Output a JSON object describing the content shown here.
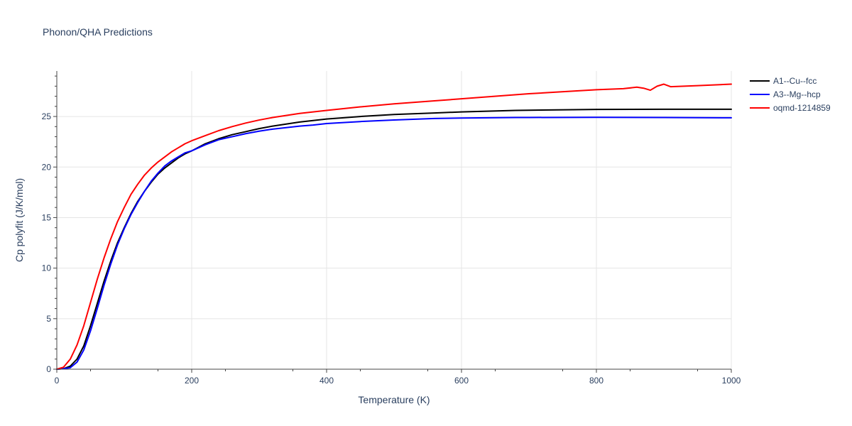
{
  "chart_data": {
    "type": "line",
    "title": "Phonon/QHA Predictions",
    "xlabel": "Temperature (K)",
    "ylabel": "Cp polyfit (J/K/mol)",
    "xlim": [
      0,
      1000
    ],
    "ylim": [
      0,
      29.5
    ],
    "xticks": [
      0,
      200,
      400,
      600,
      800,
      1000
    ],
    "xtick_labels": [
      "0",
      "200",
      "400",
      "600",
      "800",
      "1000"
    ],
    "yticks": [
      0,
      5,
      10,
      15,
      20,
      25
    ],
    "ytick_labels": [
      "0",
      "5",
      "10",
      "15",
      "20",
      "25"
    ],
    "grid": true,
    "legend_position": "top-right",
    "series": [
      {
        "name": "A1--Cu--fcc",
        "color": "#000000",
        "x": [
          0,
          10,
          20,
          30,
          40,
          50,
          60,
          70,
          80,
          90,
          100,
          110,
          120,
          130,
          140,
          150,
          160,
          170,
          180,
          190,
          200,
          220,
          240,
          260,
          280,
          300,
          320,
          340,
          360,
          380,
          400,
          450,
          500,
          560,
          600,
          680,
          700,
          800,
          900,
          1000
        ],
        "y": [
          0,
          0.05,
          0.3,
          1.0,
          2.3,
          4.3,
          6.5,
          8.7,
          10.7,
          12.5,
          14.0,
          15.4,
          16.6,
          17.6,
          18.5,
          19.3,
          19.9,
          20.4,
          20.9,
          21.3,
          21.6,
          22.3,
          22.8,
          23.2,
          23.5,
          23.8,
          24.05,
          24.25,
          24.45,
          24.6,
          24.75,
          25.0,
          25.2,
          25.35,
          25.45,
          25.6,
          25.62,
          25.7,
          25.72,
          25.72
        ]
      },
      {
        "name": "A3--Mg--hcp",
        "color": "#0000ff",
        "x": [
          0,
          10,
          20,
          30,
          40,
          50,
          60,
          70,
          80,
          90,
          100,
          110,
          120,
          130,
          140,
          150,
          160,
          170,
          180,
          190,
          200,
          220,
          240,
          260,
          280,
          300,
          320,
          340,
          360,
          380,
          400,
          450,
          500,
          560,
          600,
          680,
          700,
          800,
          900,
          1000
        ],
        "y": [
          0,
          0.05,
          0.15,
          0.7,
          1.9,
          3.8,
          6.0,
          8.3,
          10.4,
          12.3,
          13.9,
          15.3,
          16.5,
          17.6,
          18.6,
          19.4,
          20.1,
          20.6,
          21.0,
          21.4,
          21.6,
          22.2,
          22.7,
          23.0,
          23.3,
          23.55,
          23.75,
          23.9,
          24.05,
          24.15,
          24.3,
          24.5,
          24.65,
          24.8,
          24.85,
          24.9,
          24.9,
          24.92,
          24.9,
          24.87
        ]
      },
      {
        "name": "oqmd-1214859",
        "color": "#ff0000",
        "x": [
          0,
          10,
          20,
          30,
          40,
          50,
          60,
          70,
          80,
          90,
          100,
          110,
          120,
          130,
          140,
          150,
          160,
          170,
          180,
          190,
          200,
          220,
          240,
          260,
          280,
          300,
          320,
          340,
          360,
          380,
          400,
          450,
          500,
          560,
          600,
          700,
          800,
          840,
          860,
          870,
          880,
          890,
          900,
          910,
          950,
          1000
        ],
        "y": [
          0,
          0.2,
          1.0,
          2.4,
          4.3,
          6.6,
          8.9,
          11.0,
          12.9,
          14.6,
          16.0,
          17.3,
          18.3,
          19.2,
          19.9,
          20.5,
          21.0,
          21.5,
          21.9,
          22.3,
          22.6,
          23.1,
          23.6,
          24.0,
          24.35,
          24.65,
          24.9,
          25.1,
          25.3,
          25.45,
          25.6,
          25.95,
          26.25,
          26.55,
          26.75,
          27.25,
          27.65,
          27.75,
          27.9,
          27.8,
          27.6,
          28.0,
          28.2,
          27.95,
          28.05,
          28.2
        ]
      }
    ]
  }
}
